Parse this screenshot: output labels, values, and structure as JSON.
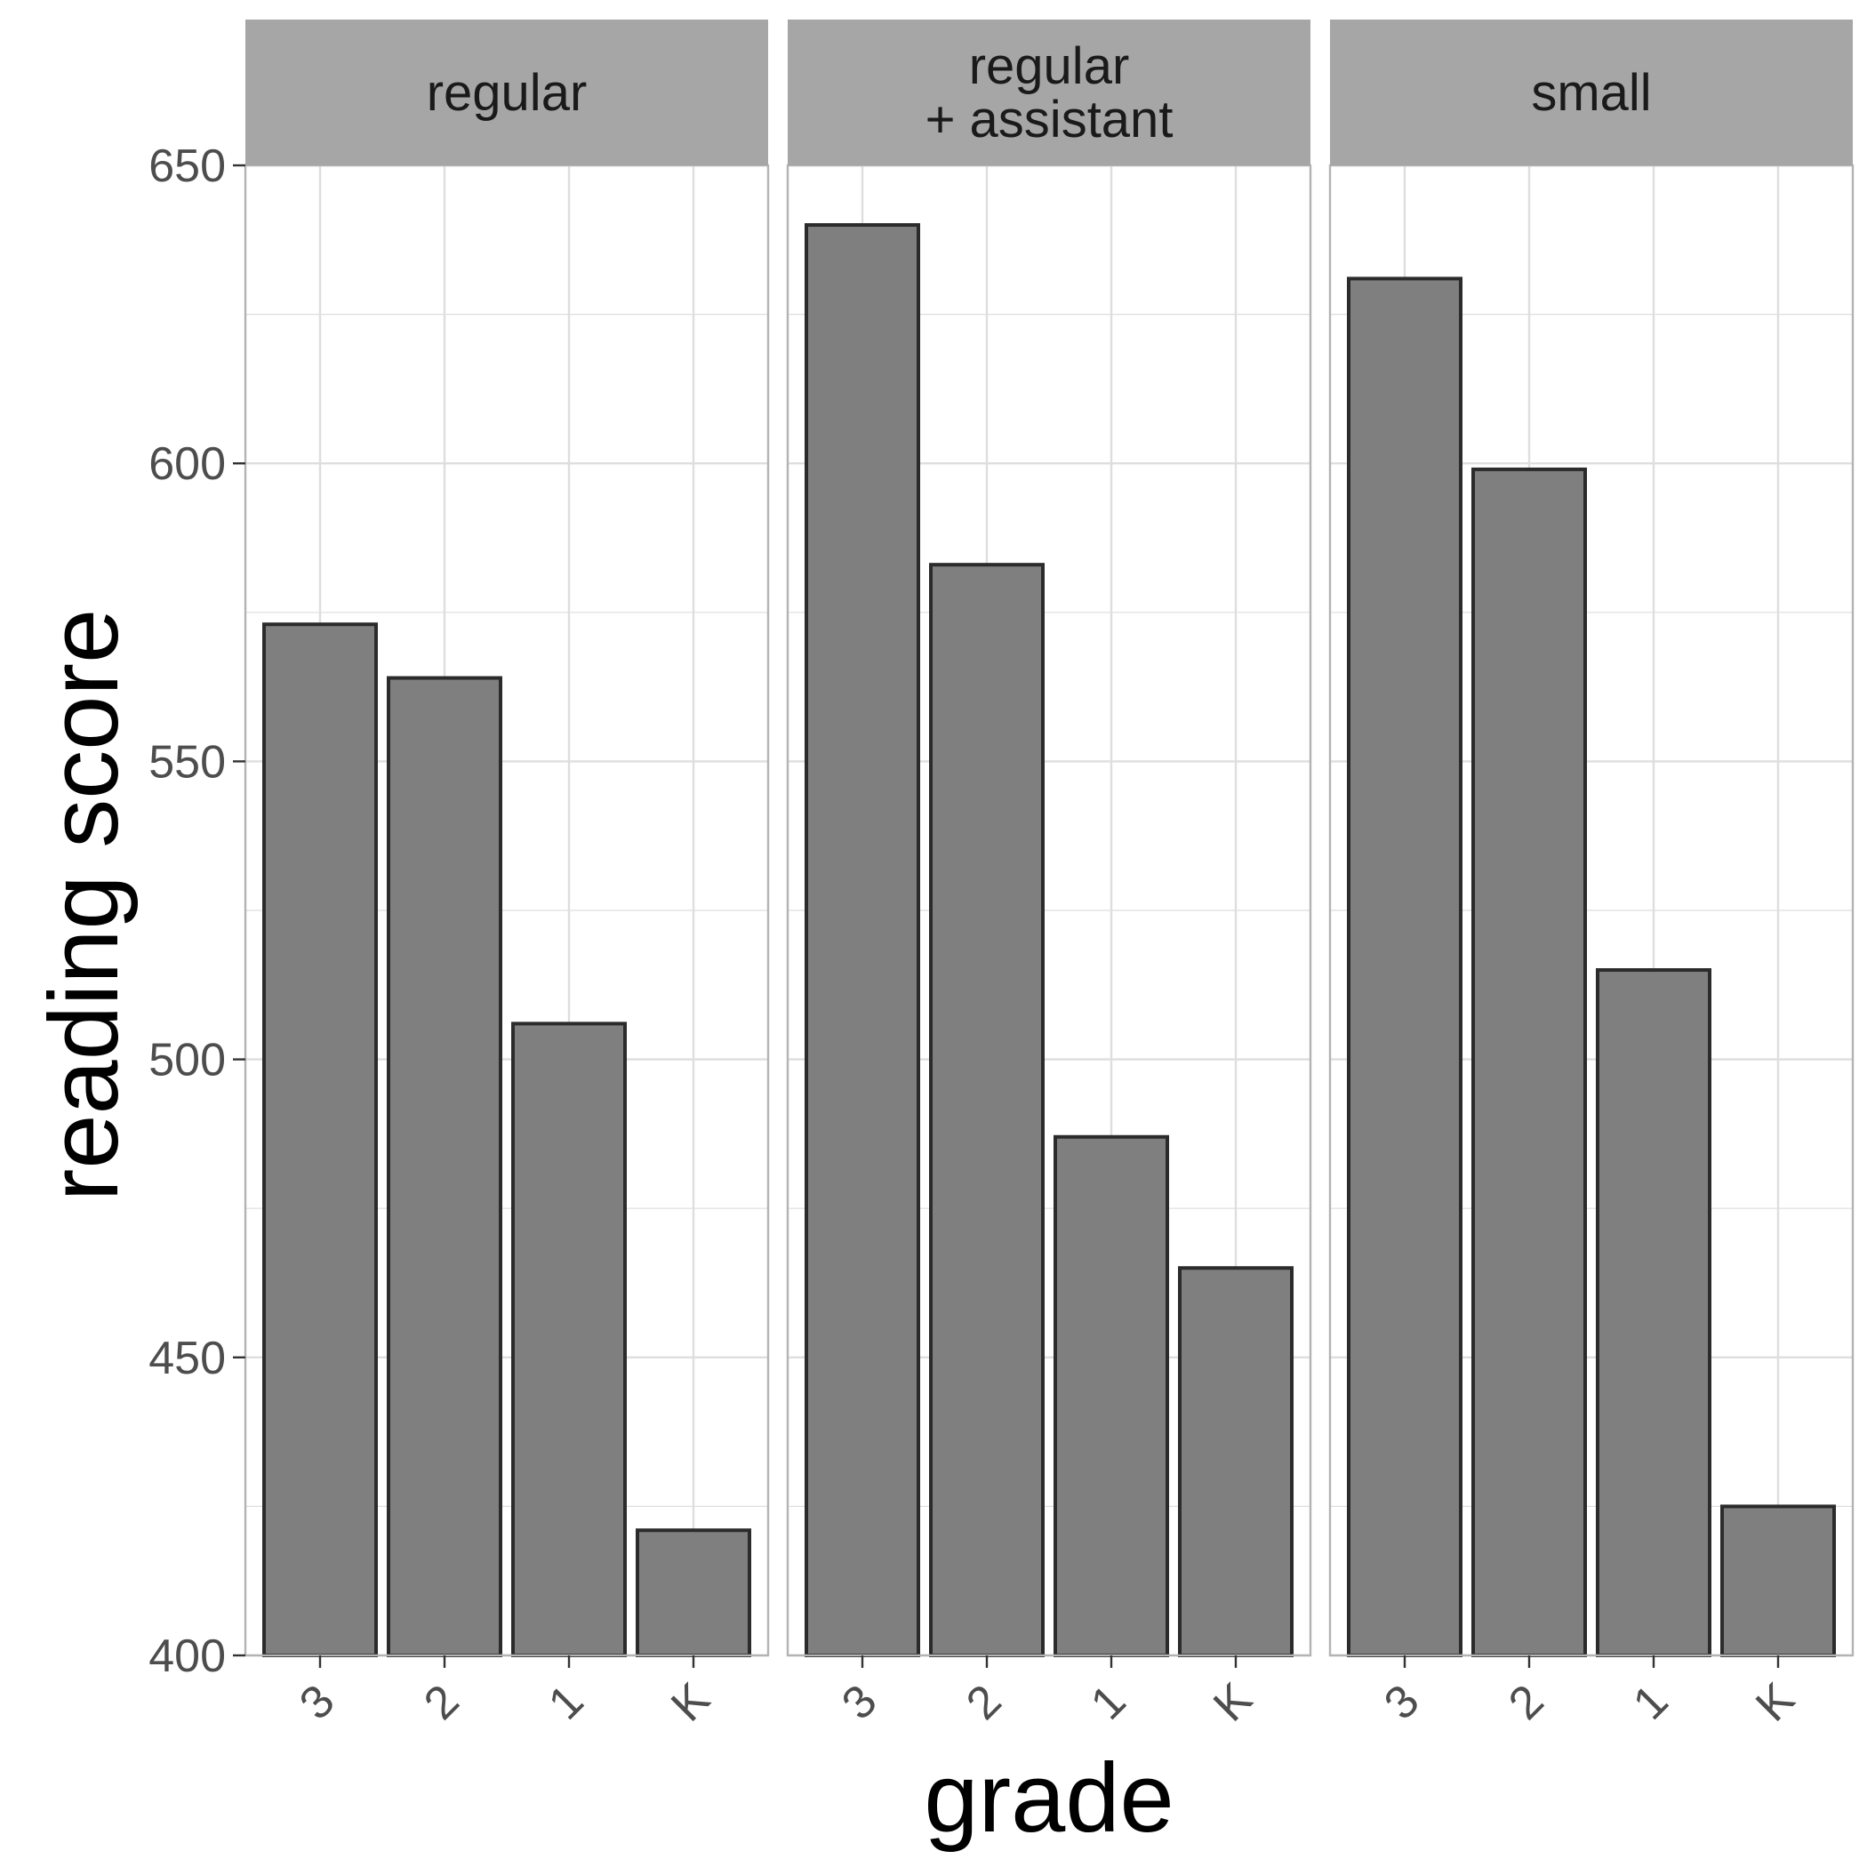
{
  "chart_data": {
    "type": "bar",
    "xlabel": "grade",
    "ylabel": "reading score",
    "ylim": [
      400,
      650
    ],
    "y_ticks": [
      400,
      450,
      500,
      550,
      600,
      650
    ],
    "categories": [
      "3",
      "2",
      "1",
      "K"
    ],
    "grid": true,
    "colors": {
      "bar_fill": "#7f7f7f",
      "bar_stroke": "#2b2b2b",
      "strip_fill": "#a6a6a6",
      "grid": "#dedede",
      "panel_border": "#b3b3b3"
    },
    "panels": [
      {
        "label": "regular",
        "values": [
          573,
          564,
          506,
          421
        ]
      },
      {
        "label": "regular\n+ assistant",
        "values": [
          640,
          583,
          487,
          465
        ]
      },
      {
        "label": "small",
        "values": [
          631,
          599,
          515,
          425
        ]
      }
    ]
  }
}
